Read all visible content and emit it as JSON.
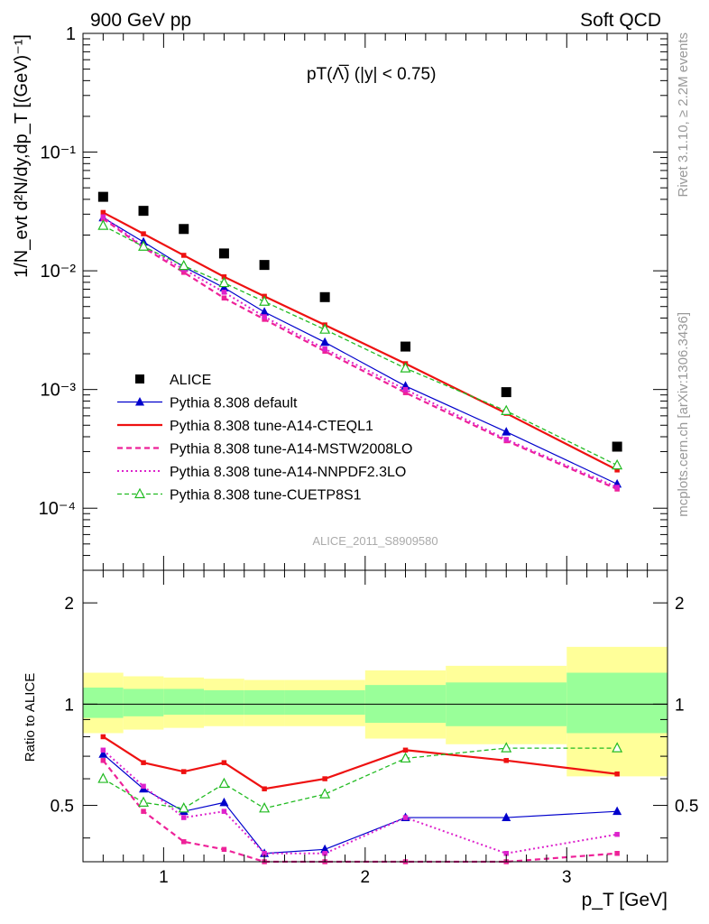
{
  "header": {
    "left": "900 GeV pp",
    "right": "Soft QCD"
  },
  "side_labels": {
    "rivet": "Rivet 3.1.10, ≥ 2.2M events",
    "mcplots": "mcplots.cern.ch [arXiv:1306.3436]"
  },
  "plot_title": "pT(Λ̅) (|y| < 0.75)",
  "analysis_id": "ALICE_2011_S8909580",
  "y_label_main": "1/N_evt d²N/dy,dp_T [(GeV)⁻¹]",
  "y_label_ratio": "Ratio to ALICE",
  "x_label": "p_T [GeV]",
  "x_ticks": [
    "1",
    "2",
    "3"
  ],
  "y_ticks_main": [
    "1",
    "10⁻¹",
    "10⁻²",
    "10⁻³",
    "10⁻⁴"
  ],
  "y_ticks_ratio": [
    "0.5",
    "1",
    "2"
  ],
  "colors": {
    "alice": "#000000",
    "default": "#0000cc",
    "cteql1": "#ee1111",
    "mstw": "#ee2299",
    "nnpdf": "#dd22cc",
    "cuetp": "#22bb22",
    "band_outer": "#ffff99",
    "band_inner": "#99ff99"
  },
  "legend": [
    {
      "key": "alice",
      "label": "ALICE"
    },
    {
      "key": "default",
      "label": "Pythia 8.308 default"
    },
    {
      "key": "cteql1",
      "label": "Pythia 8.308 tune-A14-CTEQL1"
    },
    {
      "key": "mstw",
      "label": "Pythia 8.308 tune-A14-MSTW2008LO"
    },
    {
      "key": "nnpdf",
      "label": "Pythia 8.308 tune-A14-NNPDF2.3LO"
    },
    {
      "key": "cuetp",
      "label": "Pythia 8.308 tune-CUETP8S1"
    }
  ],
  "chart_data": [
    {
      "type": "scatter",
      "scale": "log",
      "xlim": [
        0.6,
        3.5
      ],
      "ylim": [
        3e-05,
        1
      ],
      "x": [
        0.7,
        0.9,
        1.1,
        1.3,
        1.5,
        1.8,
        2.2,
        2.7,
        3.25
      ],
      "series": [
        {
          "key": "alice",
          "name": "ALICE",
          "values": [
            0.042,
            0.032,
            0.0225,
            0.014,
            0.0112,
            0.006,
            0.0023,
            0.00095,
            0.00033
          ]
        },
        {
          "key": "default",
          "name": "Pythia 8.308 default",
          "values": [
            0.028,
            0.0175,
            0.0108,
            0.0072,
            0.0045,
            0.0025,
            0.00107,
            0.00044,
            0.00016
          ]
        },
        {
          "key": "cteql1",
          "name": "Pythia 8.308 tune-A14-CTEQL1",
          "values": [
            0.031,
            0.0205,
            0.0135,
            0.0089,
            0.0061,
            0.0035,
            0.00165,
            0.00063,
            0.00021
          ]
        },
        {
          "key": "mstw",
          "name": "Pythia 8.308 tune-A14-MSTW2008LO",
          "values": [
            0.0275,
            0.0157,
            0.0097,
            0.0059,
            0.0039,
            0.0021,
            0.00094,
            0.00037,
            0.000145
          ]
        },
        {
          "key": "nnpdf",
          "name": "Pythia 8.308 tune-A14-NNPDF2.3LO",
          "values": [
            0.0285,
            0.016,
            0.0103,
            0.0066,
            0.0041,
            0.0022,
            0.001,
            0.00038,
            0.00015
          ]
        },
        {
          "key": "cuetp",
          "name": "Pythia 8.308 tune-CUETP8S1",
          "values": [
            0.024,
            0.016,
            0.011,
            0.0079,
            0.0055,
            0.0032,
            0.00151,
            0.00066,
            0.00023
          ]
        }
      ]
    },
    {
      "type": "scatter",
      "scale": "log",
      "xlim": [
        0.6,
        3.5
      ],
      "ylim": [
        0.34,
        2.5
      ],
      "x": [
        0.7,
        0.9,
        1.1,
        1.3,
        1.5,
        1.8,
        2.2,
        2.7,
        3.25
      ],
      "reference_band": {
        "edges": [
          0.6,
          0.8,
          1.0,
          1.2,
          1.4,
          1.6,
          2.0,
          2.4,
          3.0,
          3.5
        ],
        "outer_low": [
          0.82,
          0.84,
          0.85,
          0.86,
          0.86,
          0.86,
          0.79,
          0.76,
          0.61
        ],
        "outer_high": [
          1.24,
          1.21,
          1.2,
          1.19,
          1.18,
          1.18,
          1.26,
          1.3,
          1.48
        ],
        "inner_low": [
          0.91,
          0.92,
          0.93,
          0.93,
          0.93,
          0.93,
          0.88,
          0.86,
          0.82
        ],
        "inner_high": [
          1.12,
          1.11,
          1.11,
          1.1,
          1.1,
          1.1,
          1.14,
          1.16,
          1.24
        ]
      },
      "series": [
        {
          "key": "default",
          "name": "Pythia 8.308 default",
          "values": [
            0.71,
            0.56,
            0.48,
            0.51,
            0.36,
            0.37,
            0.46,
            0.46,
            0.48
          ]
        },
        {
          "key": "cteql1",
          "name": "Pythia 8.308 tune-A14-CTEQL1",
          "values": [
            0.8,
            0.67,
            0.63,
            0.67,
            0.56,
            0.6,
            0.73,
            0.68,
            0.62
          ]
        },
        {
          "key": "mstw",
          "name": "Pythia 8.308 tune-A14-MSTW2008LO",
          "values": [
            0.68,
            0.48,
            0.39,
            0.37,
            0.34,
            0.33,
            0.33,
            0.33,
            0.36
          ]
        },
        {
          "key": "nnpdf",
          "name": "Pythia 8.308 tune-A14-NNPDF2.3LO",
          "values": [
            0.73,
            0.57,
            0.46,
            0.48,
            0.36,
            0.36,
            0.46,
            0.36,
            0.41
          ]
        },
        {
          "key": "cuetp",
          "name": "Pythia 8.308 tune-CUETP8S1",
          "values": [
            0.6,
            0.51,
            0.49,
            0.58,
            0.49,
            0.54,
            0.69,
            0.74,
            0.74
          ]
        }
      ]
    }
  ]
}
